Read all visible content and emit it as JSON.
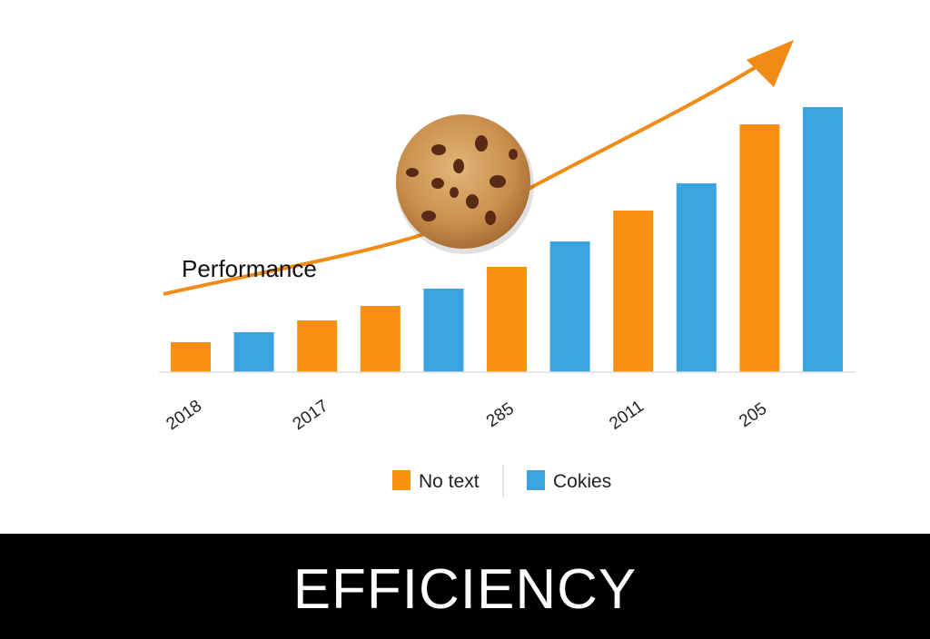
{
  "chart_data": {
    "type": "bar",
    "title": "",
    "xlabel": "",
    "ylabel": "",
    "categories": [
      "2018",
      "",
      "2017",
      "",
      "",
      "285",
      "",
      "2011",
      "",
      "205",
      ""
    ],
    "values": [
      33,
      44,
      57,
      73,
      92,
      116,
      144,
      178,
      208,
      273,
      292
    ],
    "bar_series": [
      "No text",
      "Cokies",
      "No text",
      "No text",
      "Cokies",
      "No text",
      "Cokies",
      "No text",
      "Cokies",
      "No text",
      "Cokies"
    ],
    "ylim": [
      0,
      300
    ],
    "grid": false,
    "series": [
      {
        "name": "No text",
        "color": "#F7900E"
      },
      {
        "name": "Cokies",
        "color": "#3BA3DF"
      }
    ],
    "legend": {
      "placement": "bottom",
      "items": [
        "No text",
        "Cokies"
      ]
    },
    "annotations": {
      "trend_label": "Performance",
      "trend_color": "#F28A16",
      "trend_direction": "rising arrow",
      "image": "cookie"
    }
  },
  "banner": {
    "text": "EFFICIENCY",
    "background": "#000000",
    "color": "#FFFFFF"
  }
}
